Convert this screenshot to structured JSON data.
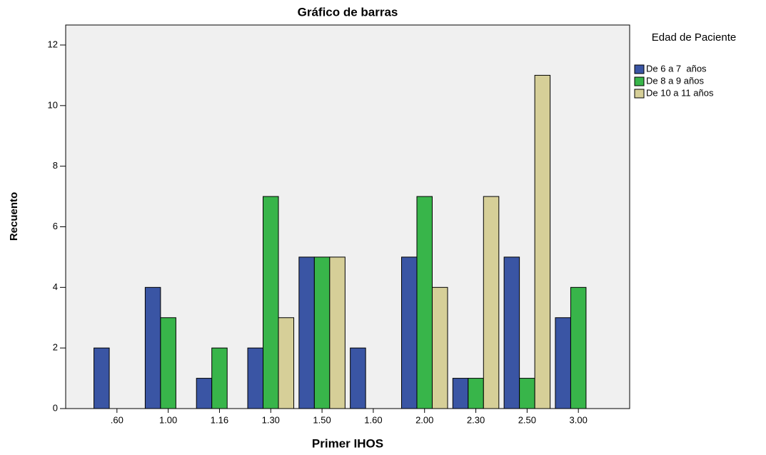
{
  "chart_data": {
    "type": "bar",
    "title": "Gráfico de barras",
    "x_label": "Primer IHOS",
    "y_label": "Recuento",
    "legend_title": "Edad de Paciente",
    "categories": [
      ".60",
      "1.00",
      "1.16",
      "1.30",
      "1.50",
      "1.60",
      "2.00",
      "2.30",
      "2.50",
      "3.00"
    ],
    "series": [
      {
        "name": "De 6 a 7  años",
        "color": "#3a55a4",
        "values": [
          2,
          4,
          1,
          2,
          5,
          2,
          5,
          1,
          5,
          3
        ]
      },
      {
        "name": "De 8 a 9 años",
        "color": "#38b54a",
        "values": [
          0,
          3,
          2,
          7,
          5,
          0,
          7,
          1,
          1,
          4
        ]
      },
      {
        "name": "De 10 a 11 años",
        "color": "#d6cf98",
        "values": [
          0,
          0,
          0,
          3,
          5,
          0,
          4,
          7,
          11,
          0
        ]
      }
    ],
    "ylim": [
      0,
      12.66
    ],
    "yticks": [
      0,
      2,
      4,
      6,
      8,
      10,
      12
    ],
    "legend": "right"
  }
}
